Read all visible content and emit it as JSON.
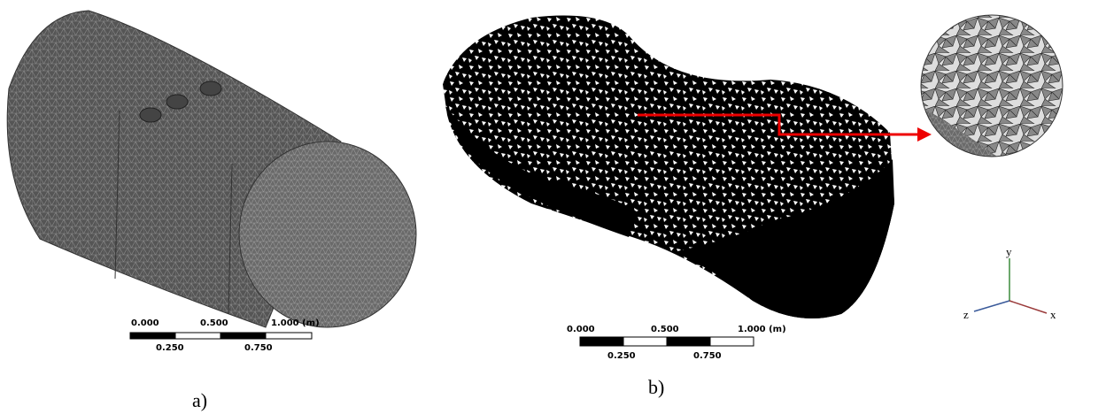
{
  "panels": [
    {
      "label": "a)",
      "scale_top": [
        "0.000",
        "0.500",
        "1.000 (m)"
      ],
      "scale_bottom": [
        "0.250",
        "0.750"
      ]
    },
    {
      "label": "b)",
      "scale_top": [
        "0.000",
        "0.500",
        "1.000 (m)"
      ],
      "scale_bottom": [
        "0.250",
        "0.750"
      ]
    }
  ],
  "triad": {
    "y": "y",
    "z": "z",
    "x": "x"
  }
}
